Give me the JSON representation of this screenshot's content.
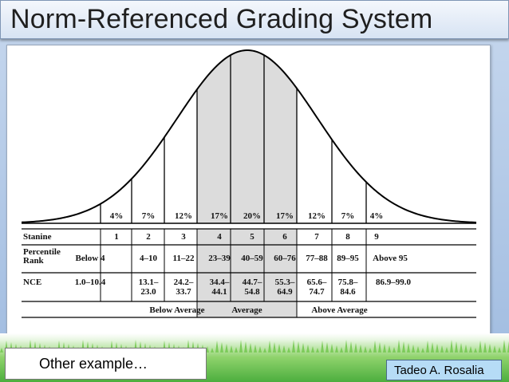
{
  "slide": {
    "title": "Norm-Referenced  Grading System",
    "note": "Other example…",
    "author": "Tadeo A. Rosalia"
  },
  "figure": {
    "percentages": [
      "4%",
      "7%",
      "12%",
      "17%",
      "20%",
      "17%",
      "12%",
      "7%",
      "4%"
    ],
    "stanine_label": "Stanine",
    "stanines": [
      "1",
      "2",
      "3",
      "4",
      "5",
      "6",
      "7",
      "8",
      "9"
    ],
    "percentile_label_line1": "Percentile",
    "percentile_label_line2": "Rank",
    "percentile_ranks": [
      "Below 4",
      "4–10",
      "11–22",
      "23–39",
      "40–59",
      "60–76",
      "77–88",
      "89–95",
      "Above 95"
    ],
    "nce_label": "NCE",
    "nce": [
      [
        "1.0–10.4",
        ""
      ],
      [
        "13.1–",
        "23.0"
      ],
      [
        "24.2–",
        "33.7"
      ],
      [
        "34.4–",
        "44.1"
      ],
      [
        "44.7–",
        "54.8"
      ],
      [
        "55.3–",
        "64.9"
      ],
      [
        "65.6–",
        "74.7"
      ],
      [
        "75.8–",
        "84.6"
      ],
      [
        "86.9–99.0",
        ""
      ]
    ],
    "groups": [
      "Below Average",
      "Average",
      "Above Average"
    ],
    "colors": {
      "shade": "#dcdcdc",
      "line": "#000000"
    }
  }
}
